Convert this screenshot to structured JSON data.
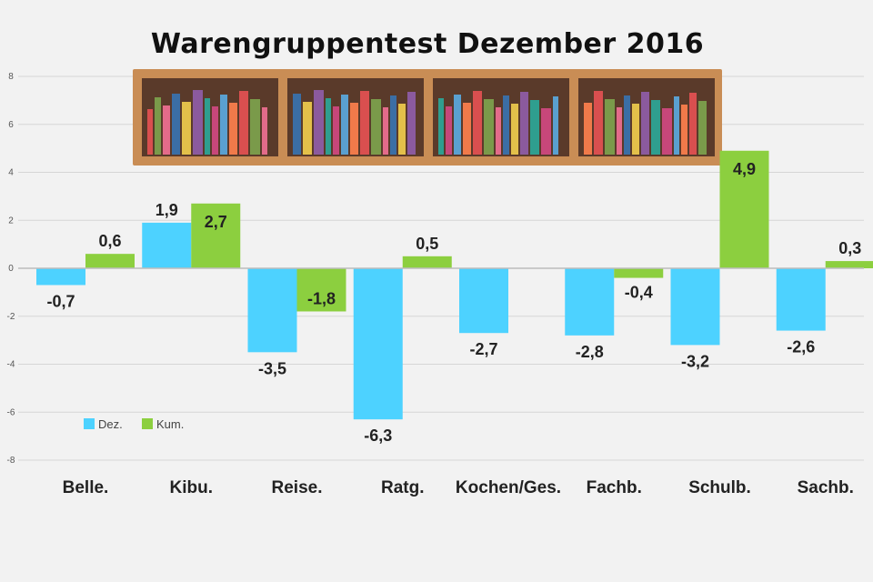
{
  "chart_data": {
    "type": "bar",
    "title": "Warengruppentest Dezember 2016",
    "categories": [
      "Belle.",
      "Kibu.",
      "Reise.",
      "Ratg.",
      "Kochen/Ges.",
      "Fachb.",
      "Schulb.",
      "Sachb."
    ],
    "series": [
      {
        "name": "Dez.",
        "color": "#4dd2ff",
        "values": [
          -0.7,
          1.9,
          -3.5,
          -6.3,
          -2.7,
          -2.8,
          -3.2,
          -2.6
        ],
        "labels": [
          "-0,7",
          "1,9",
          "-3,5",
          "-6,3",
          "-2,7",
          "-2,8",
          "-3,2",
          "-2,6"
        ]
      },
      {
        "name": "Kum.",
        "color": "#8ccf3f",
        "values": [
          0.6,
          2.7,
          -1.8,
          0.5,
          null,
          -0.4,
          4.9,
          0.3
        ],
        "labels": [
          "0,6",
          "2,7",
          "-1,8",
          "0,5",
          "",
          "-0,4",
          "4,9",
          "0,3"
        ]
      }
    ],
    "yticks": [
      "8",
      "6",
      "4",
      "2",
      "0",
      "-2",
      "-4",
      "-6",
      "-8"
    ],
    "ylim": [
      -8,
      8
    ],
    "grid": true,
    "legend_position": "bottom-left",
    "decoration": "bookshelf-illustration"
  }
}
